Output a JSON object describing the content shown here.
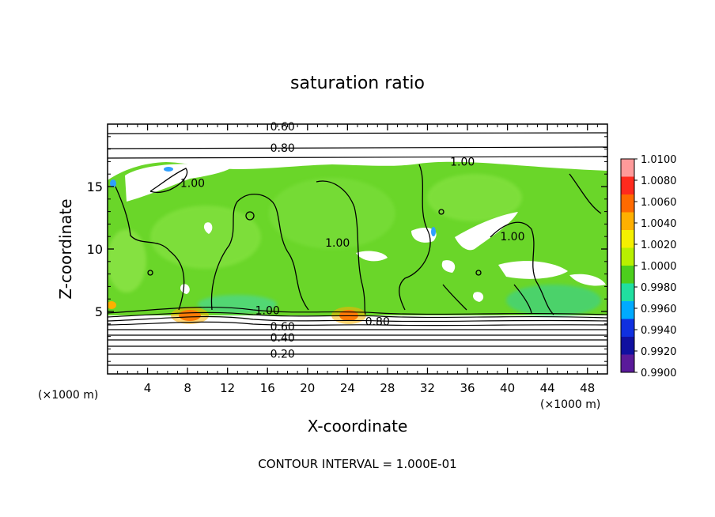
{
  "chart_data": {
    "type": "heatmap",
    "title": "saturation ratio",
    "xlabel": "X-coordinate",
    "ylabel": "Z-coordinate",
    "x_unit_left": "(×1000 m)",
    "x_unit_right": "(×1000 m)",
    "xlim": [
      0,
      50
    ],
    "ylim": [
      0,
      20
    ],
    "xticks": [
      4,
      8,
      12,
      16,
      20,
      24,
      28,
      32,
      36,
      40,
      44,
      48
    ],
    "yticks": [
      5,
      10,
      15
    ],
    "footer": "CONTOUR INTERVAL = 1.000E-01",
    "colorbar": {
      "labels": [
        "1.0100",
        "1.0080",
        "1.0060",
        "1.0040",
        "1.0020",
        "1.0000",
        "0.9980",
        "0.9960",
        "0.9940",
        "0.9920",
        "0.9900"
      ],
      "colors": [
        "#ff9a9a",
        "#ff2a1e",
        "#ff6a00",
        "#ffb000",
        "#f5f000",
        "#b8f000",
        "#4ccf1c",
        "#20dfa0",
        "#00aaff",
        "#1030e0",
        "#1010a0",
        "#5a1a9a"
      ]
    },
    "field_colors": {
      "supersaturated": "#6ad629",
      "near_one": "#7be63a",
      "subsaturated": "#ffffff",
      "peak": "#ff3a10"
    },
    "contours": [
      {
        "label": "0.60",
        "x": 17.5,
        "y": 19.8
      },
      {
        "label": "0.80",
        "x": 17.5,
        "y": 18.1
      },
      {
        "label": "1.00",
        "x": 8.5,
        "y": 15.3
      },
      {
        "label": "1.00",
        "x": 35.5,
        "y": 17.0
      },
      {
        "label": "1.00",
        "x": 23.0,
        "y": 10.5
      },
      {
        "label": "1.00",
        "x": 40.5,
        "y": 11.0
      },
      {
        "label": "1.00",
        "x": 16.0,
        "y": 5.1
      },
      {
        "label": "0.80",
        "x": 27.0,
        "y": 4.2
      },
      {
        "label": "0.60",
        "x": 17.5,
        "y": 3.8
      },
      {
        "label": "0.40",
        "x": 17.5,
        "y": 2.9
      },
      {
        "label": "0.20",
        "x": 17.5,
        "y": 1.6
      }
    ]
  }
}
